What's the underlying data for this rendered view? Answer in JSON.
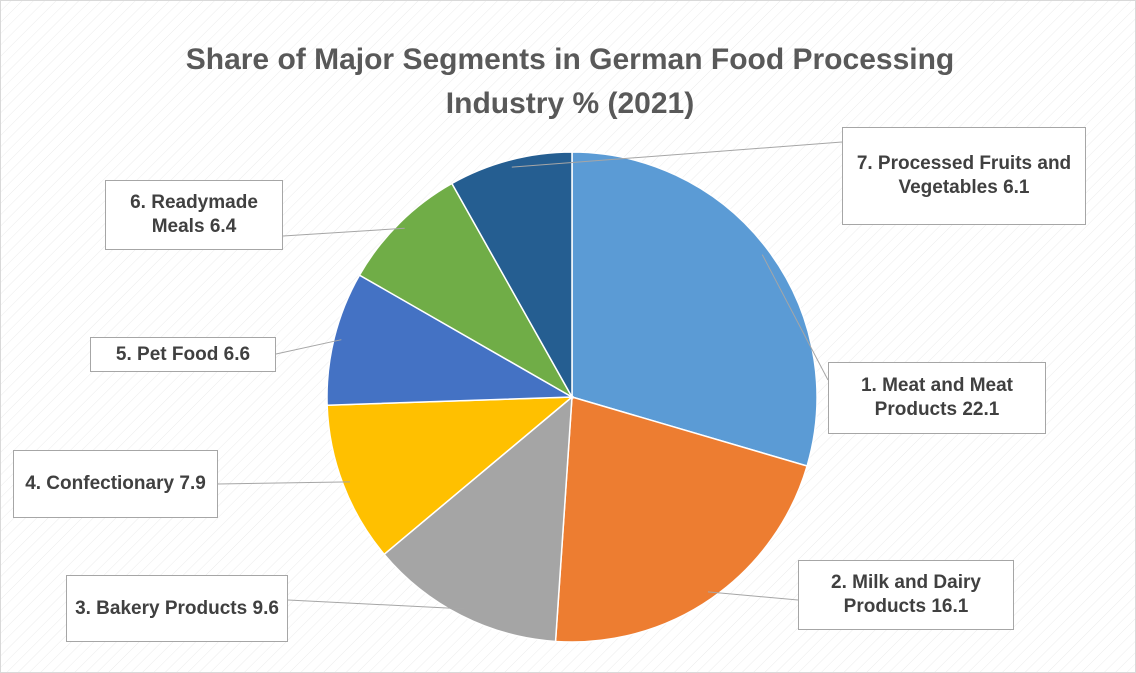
{
  "chart_data": {
    "type": "pie",
    "title": "Share of Major Segments in German Food Processing Industry % (2021)",
    "categories": [
      "1. Meat and Meat Products",
      "2. Milk and Dairy Products",
      "3. Bakery Products",
      "4. Confectionary",
      "5. Pet Food",
      "6. Readymade Meals",
      "7. Processed Fruits and Vegetables"
    ],
    "values": [
      22.1,
      16.1,
      9.6,
      7.9,
      6.6,
      6.4,
      6.1
    ],
    "colors": [
      "#5b9bd5",
      "#ed7d31",
      "#a5a5a5",
      "#ffc000",
      "#4472c4",
      "#70ad47",
      "#255e91"
    ]
  }
}
